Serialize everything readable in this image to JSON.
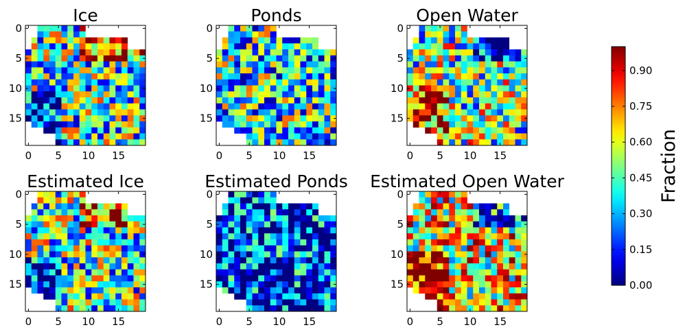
{
  "chart_data": {
    "type": "heatmap",
    "colormap": "jet",
    "grid": false,
    "panel_order": [
      "Ice",
      "Ponds",
      "Open Water",
      "Estimated Ice",
      "Estimated Ponds",
      "Estimated Open Water"
    ],
    "panels": [
      {
        "title": "Ice",
        "x_ticks": [
          "0",
          "5",
          "10",
          "15"
        ],
        "y_ticks": [
          "0",
          "5",
          "10",
          "15"
        ],
        "xlim": [
          -0.5,
          19.5
        ],
        "ylim": [
          19.5,
          -0.5
        ],
        "mean_level": 0.45
      },
      {
        "title": "Ponds",
        "x_ticks": [
          "0",
          "5",
          "10",
          "15"
        ],
        "y_ticks": [
          "0",
          "5",
          "10",
          "15"
        ],
        "xlim": [
          -0.5,
          19.5
        ],
        "ylim": [
          19.5,
          -0.5
        ],
        "mean_level": 0.4
      },
      {
        "title": "Open Water",
        "x_ticks": [
          "0",
          "5",
          "10",
          "15"
        ],
        "y_ticks": [
          "0",
          "5",
          "10",
          "15"
        ],
        "xlim": [
          -0.5,
          19.5
        ],
        "ylim": [
          19.5,
          -0.5
        ],
        "mean_level": 0.5
      },
      {
        "title": "Estimated Ice",
        "x_ticks": [
          "0",
          "5",
          "10",
          "15"
        ],
        "y_ticks": [
          "0",
          "5",
          "10",
          "15"
        ],
        "xlim": [
          -0.5,
          19.5
        ],
        "ylim": [
          19.5,
          -0.5
        ],
        "mean_level": 0.45
      },
      {
        "title": "Estimated Ponds",
        "x_ticks": [
          "0",
          "5",
          "10",
          "15"
        ],
        "y_ticks": [
          "0",
          "5",
          "10",
          "15"
        ],
        "xlim": [
          -0.5,
          19.5
        ],
        "ylim": [
          19.5,
          -0.5
        ],
        "mean_level": 0.15
      },
      {
        "title": "Estimated Open Water",
        "x_ticks": [
          "0",
          "5",
          "10",
          "15"
        ],
        "y_ticks": [
          "0",
          "5",
          "10",
          "15"
        ],
        "xlim": [
          -0.5,
          19.5
        ],
        "ylim": [
          19.5,
          -0.5
        ],
        "mean_level": 0.62
      }
    ],
    "colorbar": {
      "label": "Fraction",
      "range": [
        0,
        1
      ],
      "ticks": [
        "0.00",
        "0.15",
        "0.30",
        "0.45",
        "0.60",
        "0.75",
        "0.90"
      ],
      "tick_values": [
        0.0,
        0.15,
        0.3,
        0.45,
        0.6,
        0.75,
        0.9
      ]
    }
  }
}
